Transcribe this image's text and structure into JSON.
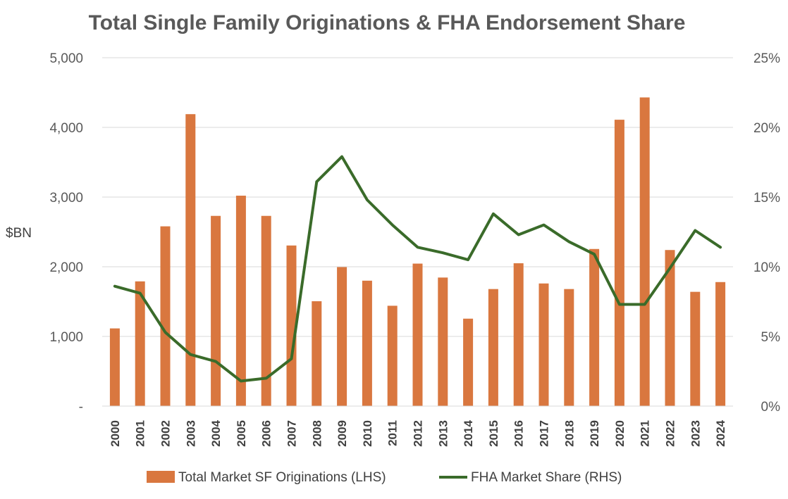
{
  "chart_data": {
    "type": "bar",
    "title": "Total Single Family Originations & FHA Endorsement Share",
    "xlabel": "",
    "ylabel": "$BN",
    "ylim": [
      0,
      5000
    ],
    "y2lim": [
      0,
      25
    ],
    "y_ticks": [
      "-",
      "1,000",
      "2,000",
      "3,000",
      "4,000",
      "5,000"
    ],
    "y2_ticks": [
      "0%",
      "5%",
      "10%",
      "15%",
      "20%",
      "25%"
    ],
    "categories": [
      "2000",
      "2001",
      "2002",
      "2003",
      "2004",
      "2005",
      "2006",
      "2007",
      "2008",
      "2009",
      "2010",
      "2011",
      "2012",
      "2013",
      "2014",
      "2015",
      "2016",
      "2017",
      "2018",
      "2019",
      "2020",
      "2021",
      "2022",
      "2023",
      "2024"
    ],
    "series": [
      {
        "name": "Total Market SF Originations (LHS)",
        "type": "bar",
        "axis": "left",
        "color": "#D9773F",
        "values": [
          1115,
          1790,
          2580,
          4190,
          2730,
          3020,
          2730,
          2305,
          1505,
          1995,
          1800,
          1440,
          2045,
          1845,
          1255,
          1680,
          2050,
          1760,
          1680,
          2255,
          4110,
          4430,
          2240,
          1640,
          1780
        ]
      },
      {
        "name": "FHA Market Share (RHS)",
        "type": "line",
        "axis": "right",
        "color": "#3A6B2A",
        "values": [
          8.6,
          8.1,
          5.3,
          3.7,
          3.2,
          1.8,
          2.0,
          3.4,
          16.1,
          17.9,
          14.8,
          13.0,
          11.4,
          11.0,
          10.5,
          13.8,
          12.3,
          13.0,
          11.8,
          10.9,
          7.3,
          7.3,
          9.9,
          12.6,
          11.4
        ]
      }
    ],
    "legend_position": "bottom"
  }
}
